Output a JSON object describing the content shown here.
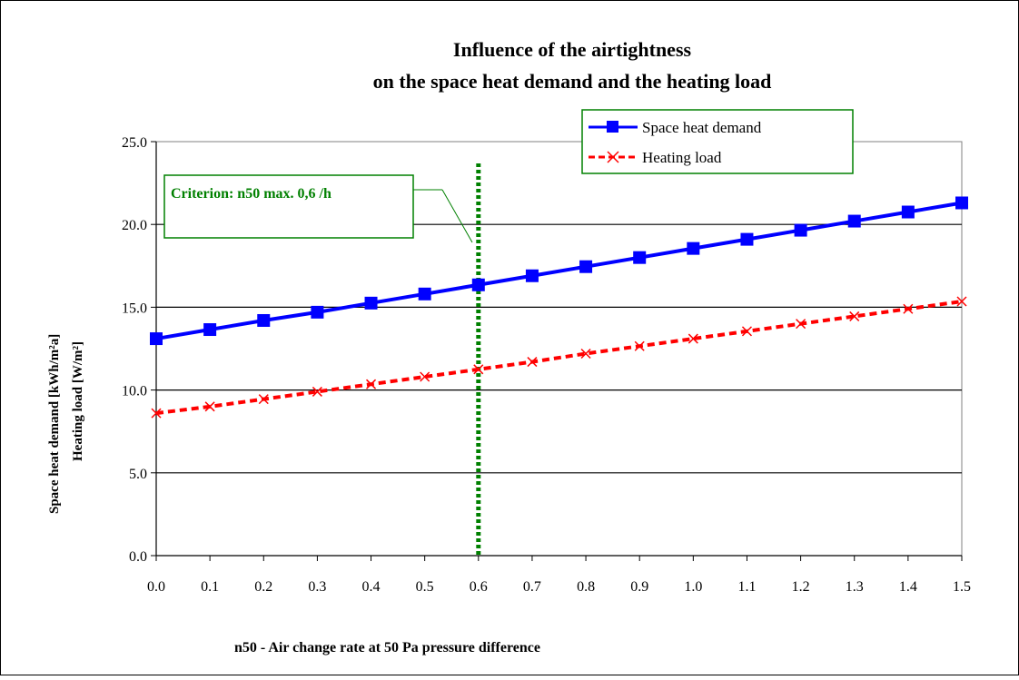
{
  "chart_data": {
    "type": "line",
    "title": "Influence of the airtightness",
    "subtitle": "on the space heat demand and the heating load",
    "xlabel": "n50 - Air change rate at 50 Pa pressure difference",
    "ylabel_left": "Space heat demand [kWh/m²a]",
    "ylabel_right": "Heating load [W/m²]",
    "x": [
      0.0,
      0.1,
      0.2,
      0.3,
      0.4,
      0.5,
      0.6,
      0.7,
      0.8,
      0.9,
      1.0,
      1.1,
      1.2,
      1.3,
      1.4,
      1.5
    ],
    "x_tick_labels": [
      "0.0",
      "0.1",
      "0.2",
      "0.3",
      "0.4",
      "0.5",
      "0.6",
      "0.7",
      "0.8",
      "0.9",
      "1.0",
      "1.1",
      "1.2",
      "1.3",
      "1.4",
      "1.5"
    ],
    "xlim": [
      0.0,
      1.5
    ],
    "ylim": [
      0,
      25
    ],
    "y_ticks": [
      0,
      5,
      10,
      15,
      20,
      25
    ],
    "y_tick_labels": [
      "0.0",
      "5.0",
      "10.0",
      "15.0",
      "20.0",
      "25.0"
    ],
    "grid": "horizontal",
    "legend_position": "top-right",
    "series": [
      {
        "name": "Space heat demand",
        "color": "#0000FF",
        "marker": "square",
        "line_style": "solid",
        "values": [
          13.1,
          13.65,
          14.2,
          14.7,
          15.25,
          15.8,
          16.35,
          16.9,
          17.45,
          18.0,
          18.55,
          19.1,
          19.65,
          20.2,
          20.75,
          21.3
        ]
      },
      {
        "name": "Heating load",
        "color": "#FF0000",
        "marker": "x",
        "line_style": "dashed",
        "values": [
          8.6,
          9.0,
          9.45,
          9.9,
          10.35,
          10.8,
          11.25,
          11.7,
          12.2,
          12.65,
          13.1,
          13.55,
          14.0,
          14.45,
          14.9,
          15.35
        ]
      }
    ],
    "reference_line": {
      "x": 0.6,
      "color": "#008000",
      "style": "dotted",
      "label": "Criterion: n50 max. 0,6 /h"
    }
  }
}
